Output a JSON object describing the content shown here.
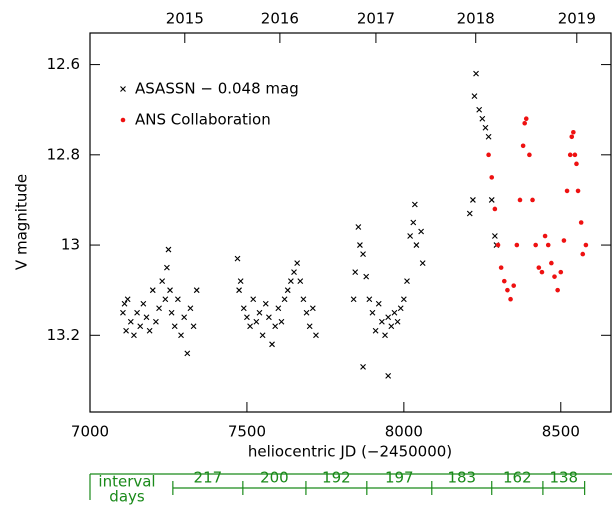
{
  "chart_data": {
    "type": "scatter",
    "xlabel": "heliocentric JD (−2450000)",
    "ylabel": "V magnitude",
    "xlim": [
      7000,
      8660
    ],
    "ylim": [
      12.53,
      13.37
    ],
    "y_inverted": true,
    "xticks": [
      7000,
      7500,
      8000,
      8500
    ],
    "yticks": [
      12.6,
      12.8,
      13.0,
      13.2
    ],
    "top_xticks": [
      {
        "value": 7302,
        "label": "2015"
      },
      {
        "value": 7605,
        "label": "2016"
      },
      {
        "value": 7911,
        "label": "2017"
      },
      {
        "value": 8229,
        "label": "2018"
      },
      {
        "value": 8551,
        "label": "2019"
      }
    ],
    "legend": "upper left",
    "series": [
      {
        "name": "ASASSN − 0.048 mag",
        "color": "#000000",
        "marker": "x",
        "x": [
          7105,
          7110,
          7115,
          7120,
          7130,
          7140,
          7150,
          7160,
          7170,
          7180,
          7190,
          7200,
          7210,
          7220,
          7230,
          7240,
          7245,
          7250,
          7255,
          7260,
          7270,
          7280,
          7290,
          7300,
          7310,
          7320,
          7330,
          7340,
          7470,
          7475,
          7480,
          7490,
          7500,
          7510,
          7520,
          7530,
          7540,
          7550,
          7560,
          7570,
          7580,
          7590,
          7600,
          7610,
          7620,
          7630,
          7640,
          7650,
          7660,
          7670,
          7680,
          7690,
          7700,
          7710,
          7720,
          7840,
          7845,
          7855,
          7860,
          7870,
          7880,
          7890,
          7900,
          7910,
          7920,
          7930,
          7940,
          7950,
          7960,
          7970,
          7980,
          7990,
          8000,
          8010,
          8020,
          8030,
          8035,
          8040,
          8055,
          8060,
          7950,
          7870,
          8210,
          8220,
          8225,
          8230,
          8240,
          8250,
          8260,
          8270,
          8280,
          8290,
          8295
        ],
        "values": [
          13.15,
          13.13,
          13.19,
          13.12,
          13.17,
          13.2,
          13.15,
          13.18,
          13.13,
          13.16,
          13.19,
          13.1,
          13.17,
          13.14,
          13.08,
          13.12,
          13.05,
          13.01,
          13.1,
          13.15,
          13.18,
          13.12,
          13.2,
          13.16,
          13.24,
          13.14,
          13.18,
          13.1,
          13.03,
          13.1,
          13.08,
          13.14,
          13.16,
          13.18,
          13.12,
          13.17,
          13.15,
          13.2,
          13.13,
          13.16,
          13.22,
          13.18,
          13.14,
          13.17,
          13.12,
          13.1,
          13.08,
          13.06,
          13.04,
          13.08,
          13.12,
          13.15,
          13.18,
          13.14,
          13.2,
          13.12,
          13.06,
          12.96,
          13.0,
          13.02,
          13.07,
          13.12,
          13.15,
          13.19,
          13.13,
          13.17,
          13.2,
          13.16,
          13.18,
          13.15,
          13.17,
          13.14,
          13.12,
          13.08,
          12.98,
          12.95,
          12.91,
          13.0,
          12.97,
          13.04,
          13.29,
          13.27,
          12.93,
          12.9,
          12.67,
          12.62,
          12.7,
          12.72,
          12.74,
          12.76,
          12.9,
          12.98,
          13.0
        ]
      },
      {
        "name": "ANS Collaboration",
        "color": "#ee1111",
        "marker": "circle",
        "x": [
          8270,
          8280,
          8290,
          8300,
          8310,
          8320,
          8330,
          8340,
          8350,
          8360,
          8370,
          8380,
          8385,
          8390,
          8400,
          8410,
          8420,
          8430,
          8440,
          8450,
          8460,
          8470,
          8480,
          8490,
          8500,
          8510,
          8520,
          8530,
          8535,
          8540,
          8545,
          8550,
          8555,
          8565,
          8570,
          8580
        ],
        "values": [
          12.8,
          12.85,
          12.92,
          13.0,
          13.05,
          13.08,
          13.1,
          13.12,
          13.09,
          13.0,
          12.9,
          12.78,
          12.73,
          12.72,
          12.8,
          12.9,
          13.0,
          13.05,
          13.06,
          12.98,
          13.0,
          13.04,
          13.07,
          13.1,
          13.06,
          12.99,
          12.88,
          12.8,
          12.76,
          12.75,
          12.8,
          12.82,
          12.88,
          12.95,
          13.02,
          13.0
        ]
      }
    ]
  },
  "intervals": {
    "label_lines": [
      "interval",
      "days"
    ],
    "boundaries": [
      7264,
      7487,
      7688,
      7882,
      8089,
      8280,
      8443,
      8576
    ],
    "values": [
      217,
      200,
      192,
      197,
      183,
      162,
      138
    ]
  }
}
